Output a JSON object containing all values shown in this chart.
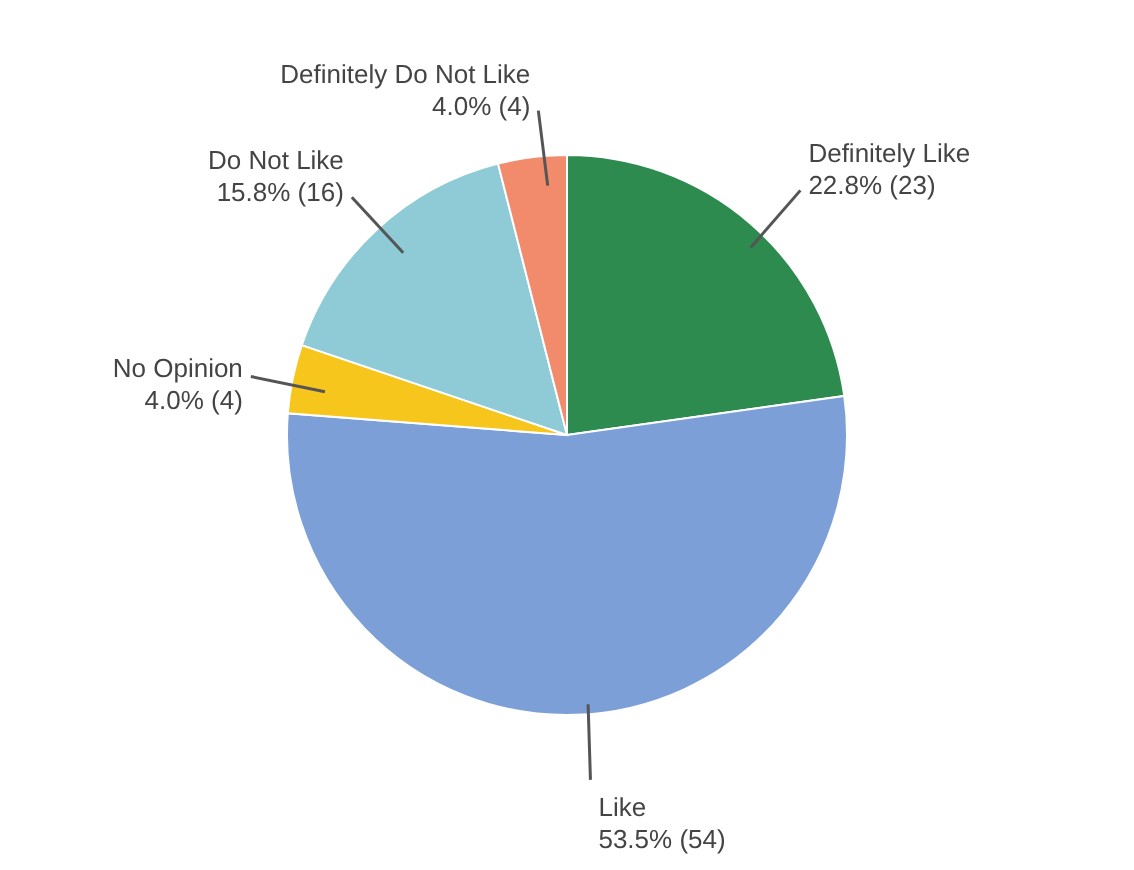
{
  "chart_data": {
    "type": "pie",
    "categories": [
      "Definitely Like",
      "Like",
      "No Opinion",
      "Do Not Like",
      "Definitely Do Not Like"
    ],
    "values": [
      23,
      54,
      4,
      16,
      4
    ],
    "value_labels": [
      "22.8% (23)",
      "53.5% (54)",
      "4.0% (4)",
      "15.8% (16)",
      "4.0% (4)"
    ],
    "colors": [
      "#2e8b4f",
      "#7b9fd6",
      "#f6c61c",
      "#8ecbd6",
      "#f28a6c"
    ]
  }
}
